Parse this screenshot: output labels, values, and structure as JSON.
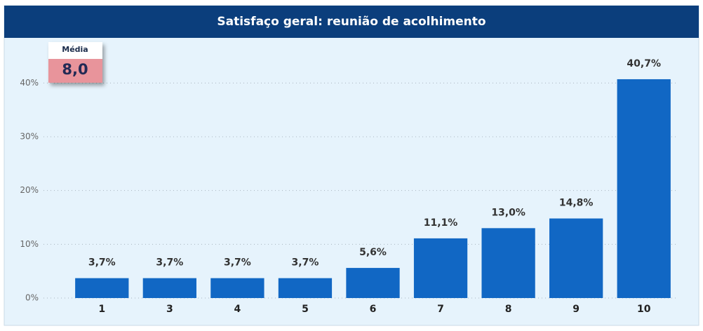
{
  "chart_data": {
    "type": "bar",
    "title": "Satisfaço geral: reunião de acolhimento",
    "categories": [
      "1",
      "3",
      "4",
      "5",
      "6",
      "7",
      "8",
      "9",
      "10"
    ],
    "values": [
      3.7,
      3.7,
      3.7,
      3.7,
      5.6,
      11.1,
      13.0,
      14.8,
      40.7
    ],
    "value_labels": [
      "3,7%",
      "3,7%",
      "3,7%",
      "3,7%",
      "5,6%",
      "11,1%",
      "13,0%",
      "14,8%",
      "40,7%"
    ],
    "color": "#1167c4",
    "ylim": [
      0,
      45
    ],
    "yticks": [
      {
        "value": 0,
        "label": "0%"
      },
      {
        "value": 10,
        "label": "10%"
      },
      {
        "value": 20,
        "label": "20%"
      },
      {
        "value": 30,
        "label": "30%"
      },
      {
        "value": 40,
        "label": "40%"
      }
    ],
    "grid": true,
    "card": {
      "label": "Média",
      "value": "8,0"
    }
  }
}
